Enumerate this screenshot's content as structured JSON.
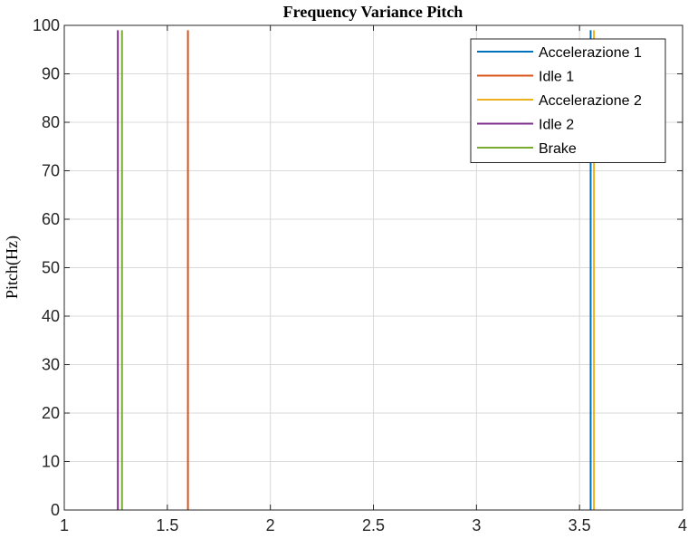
{
  "chart_data": {
    "type": "line",
    "title": "Frequency Variance Pitch",
    "xlabel": "",
    "ylabel": "Pitch(Hz)",
    "xlim": [
      1,
      4
    ],
    "ylim": [
      0,
      100
    ],
    "xticks": [
      "1",
      "1.5",
      "2",
      "2.5",
      "3",
      "3.5",
      "4"
    ],
    "yticks": [
      "0",
      "10",
      "20",
      "30",
      "40",
      "50",
      "60",
      "70",
      "80",
      "90",
      "100"
    ],
    "grid": true,
    "legend_position": "top-right",
    "series": [
      {
        "name": "Accelerazione 1",
        "color": "#0072BD",
        "x": [
          3.554,
          3.554
        ],
        "y": [
          0,
          99
        ]
      },
      {
        "name": "Idle 1",
        "color": "#D95319",
        "x": [
          1.6,
          1.6
        ],
        "y": [
          0,
          99
        ]
      },
      {
        "name": "Accelerazione 2",
        "color": "#EDB120",
        "x": [
          3.57,
          3.57
        ],
        "y": [
          0,
          99
        ]
      },
      {
        "name": "Idle 2",
        "color": "#7E2F8E",
        "x": [
          1.26,
          1.26
        ],
        "y": [
          0,
          99
        ]
      },
      {
        "name": "Brake",
        "color": "#77AC30",
        "x": [
          1.28,
          1.28
        ],
        "y": [
          0,
          99
        ]
      }
    ]
  }
}
